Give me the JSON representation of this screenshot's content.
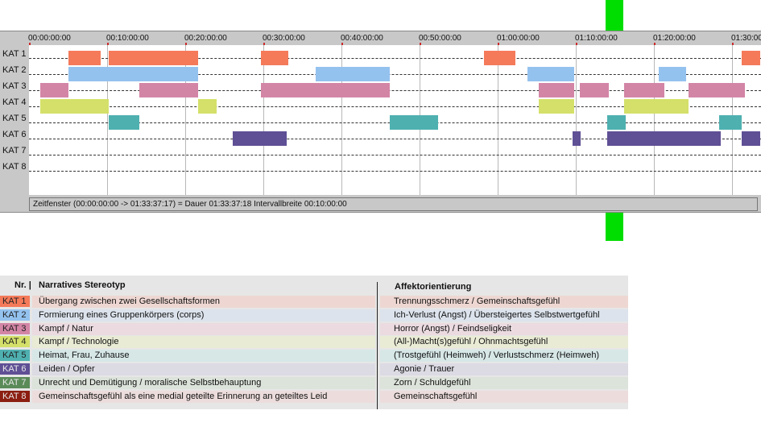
{
  "timeline": {
    "ticks": [
      "00:00:00:00",
      "00:10:00:00",
      "00:20:00:00",
      "00:30:00:00",
      "00:40:00:00",
      "00:50:00:00",
      "01:00:00:00",
      "01:10:00:00",
      "01:20:00:00",
      "01:30:00"
    ],
    "rows": [
      "KAT 1",
      "KAT 2",
      "KAT 3",
      "KAT 4",
      "KAT 5",
      "KAT 6",
      "KAT 7",
      "KAT 8"
    ],
    "segments": [
      {
        "row": 0,
        "start": 5.1,
        "end": 9.2,
        "color": "#f47a5a"
      },
      {
        "row": 0,
        "start": 10.2,
        "end": 21.7,
        "color": "#f47a5a"
      },
      {
        "row": 0,
        "start": 29.7,
        "end": 33.2,
        "color": "#f47a5a"
      },
      {
        "row": 0,
        "start": 58.2,
        "end": 62.3,
        "color": "#f47a5a"
      },
      {
        "row": 0,
        "start": 91.2,
        "end": 93.6,
        "color": "#f47a5a"
      },
      {
        "row": 1,
        "start": 5.1,
        "end": 21.7,
        "color": "#94c2ef"
      },
      {
        "row": 1,
        "start": 36.7,
        "end": 46.2,
        "color": "#94c2ef"
      },
      {
        "row": 1,
        "start": 63.8,
        "end": 69.8,
        "color": "#94c2ef"
      },
      {
        "row": 1,
        "start": 80.6,
        "end": 84.1,
        "color": "#94c2ef"
      },
      {
        "row": 2,
        "start": 1.4,
        "end": 5.1,
        "color": "#d385a6"
      },
      {
        "row": 2,
        "start": 14.1,
        "end": 21.7,
        "color": "#d385a6"
      },
      {
        "row": 2,
        "start": 29.7,
        "end": 46.2,
        "color": "#d385a6"
      },
      {
        "row": 2,
        "start": 65.3,
        "end": 69.8,
        "color": "#d385a6"
      },
      {
        "row": 2,
        "start": 70.5,
        "end": 74.2,
        "color": "#d385a6"
      },
      {
        "row": 2,
        "start": 76.2,
        "end": 81.3,
        "color": "#d385a6"
      },
      {
        "row": 2,
        "start": 84.4,
        "end": 91.7,
        "color": "#d385a6"
      },
      {
        "row": 3,
        "start": 1.4,
        "end": 10.2,
        "color": "#d4e06a"
      },
      {
        "row": 3,
        "start": 21.7,
        "end": 24.0,
        "color": "#d4e06a"
      },
      {
        "row": 3,
        "start": 65.3,
        "end": 69.8,
        "color": "#d4e06a"
      },
      {
        "row": 3,
        "start": 76.2,
        "end": 84.4,
        "color": "#d4e06a"
      },
      {
        "row": 4,
        "start": 10.2,
        "end": 14.1,
        "color": "#4fb0b0"
      },
      {
        "row": 4,
        "start": 46.2,
        "end": 52.4,
        "color": "#4fb0b0"
      },
      {
        "row": 4,
        "start": 74.0,
        "end": 76.4,
        "color": "#4fb0b0"
      },
      {
        "row": 4,
        "start": 88.3,
        "end": 91.2,
        "color": "#4fb0b0"
      },
      {
        "row": 5,
        "start": 26.1,
        "end": 33.0,
        "color": "#5f4f95"
      },
      {
        "row": 5,
        "start": 69.6,
        "end": 70.6,
        "color": "#5f4f95"
      },
      {
        "row": 5,
        "start": 74.0,
        "end": 88.6,
        "color": "#5f4f95"
      },
      {
        "row": 5,
        "start": 91.2,
        "end": 93.6,
        "color": "#5f4f95"
      }
    ],
    "status": "Zeitfenster (00:00:00:00 -> 01:33:37:17) = Dauer 01:33:37:18    Intervallbreite 00:10:00:00"
  },
  "legend": {
    "header_nr": "Nr. |",
    "header_stereotype": "Narratives Stereotyp",
    "header_affect": "Affektorientierung",
    "rows": [
      {
        "code": "KAT 1",
        "stereotype": "Übergang zwischen zwei Gesellschaftsformen",
        "affect": "Trennungsschmerz / Gemeinschaftsgefühl",
        "swatch": "#f47a5a",
        "bg": "#eed7d2"
      },
      {
        "code": "KAT 2",
        "stereotype": "Formierung eines Gruppenkörpers (corps)",
        "affect": "Ich-Verlust (Angst) / Übersteigertes Selbstwertgefühl",
        "swatch": "#94c2ef",
        "bg": "#dce3ec"
      },
      {
        "code": "KAT 3",
        "stereotype": "Kampf / Natur",
        "affect": "Horror (Angst) / Feindseligkeit",
        "swatch": "#d385a6",
        "bg": "#ebdbe1"
      },
      {
        "code": "KAT 4",
        "stereotype": "Kampf / Technologie",
        "affect": "(All-)Macht(s)gefühl / Ohnmachtsgefühl",
        "swatch": "#d4e06a",
        "bg": "#e9ebd5"
      },
      {
        "code": "KAT 5",
        "stereotype": "Heimat, Frau, Zuhause",
        "affect": "(Trostgefühl (Heimweh) / Verlustschmerz (Heimweh)",
        "swatch": "#4fb0b0",
        "bg": "#d6e7e6"
      },
      {
        "code": "KAT 6",
        "stereotype": "Leiden / Opfer",
        "affect": "Agonie / Trauer",
        "swatch": "#5f4f95",
        "bg": "#dcdbe4"
      },
      {
        "code": "KAT 7",
        "stereotype": "Unrecht und Demütigung / moralische Selbstbehauptung",
        "affect": "Zorn / Schuldgefühl",
        "swatch": "#5a8a58",
        "bg": "#dce3da"
      },
      {
        "code": "KAT 8",
        "stereotype": "Gemeinschaftsgefühl als eine medial geteilte Erinnerung an geteiltes Leid",
        "affect": "Gemeinschaftsgefühl",
        "swatch": "#8b1e10",
        "bg": "#ecdcdc"
      }
    ]
  }
}
